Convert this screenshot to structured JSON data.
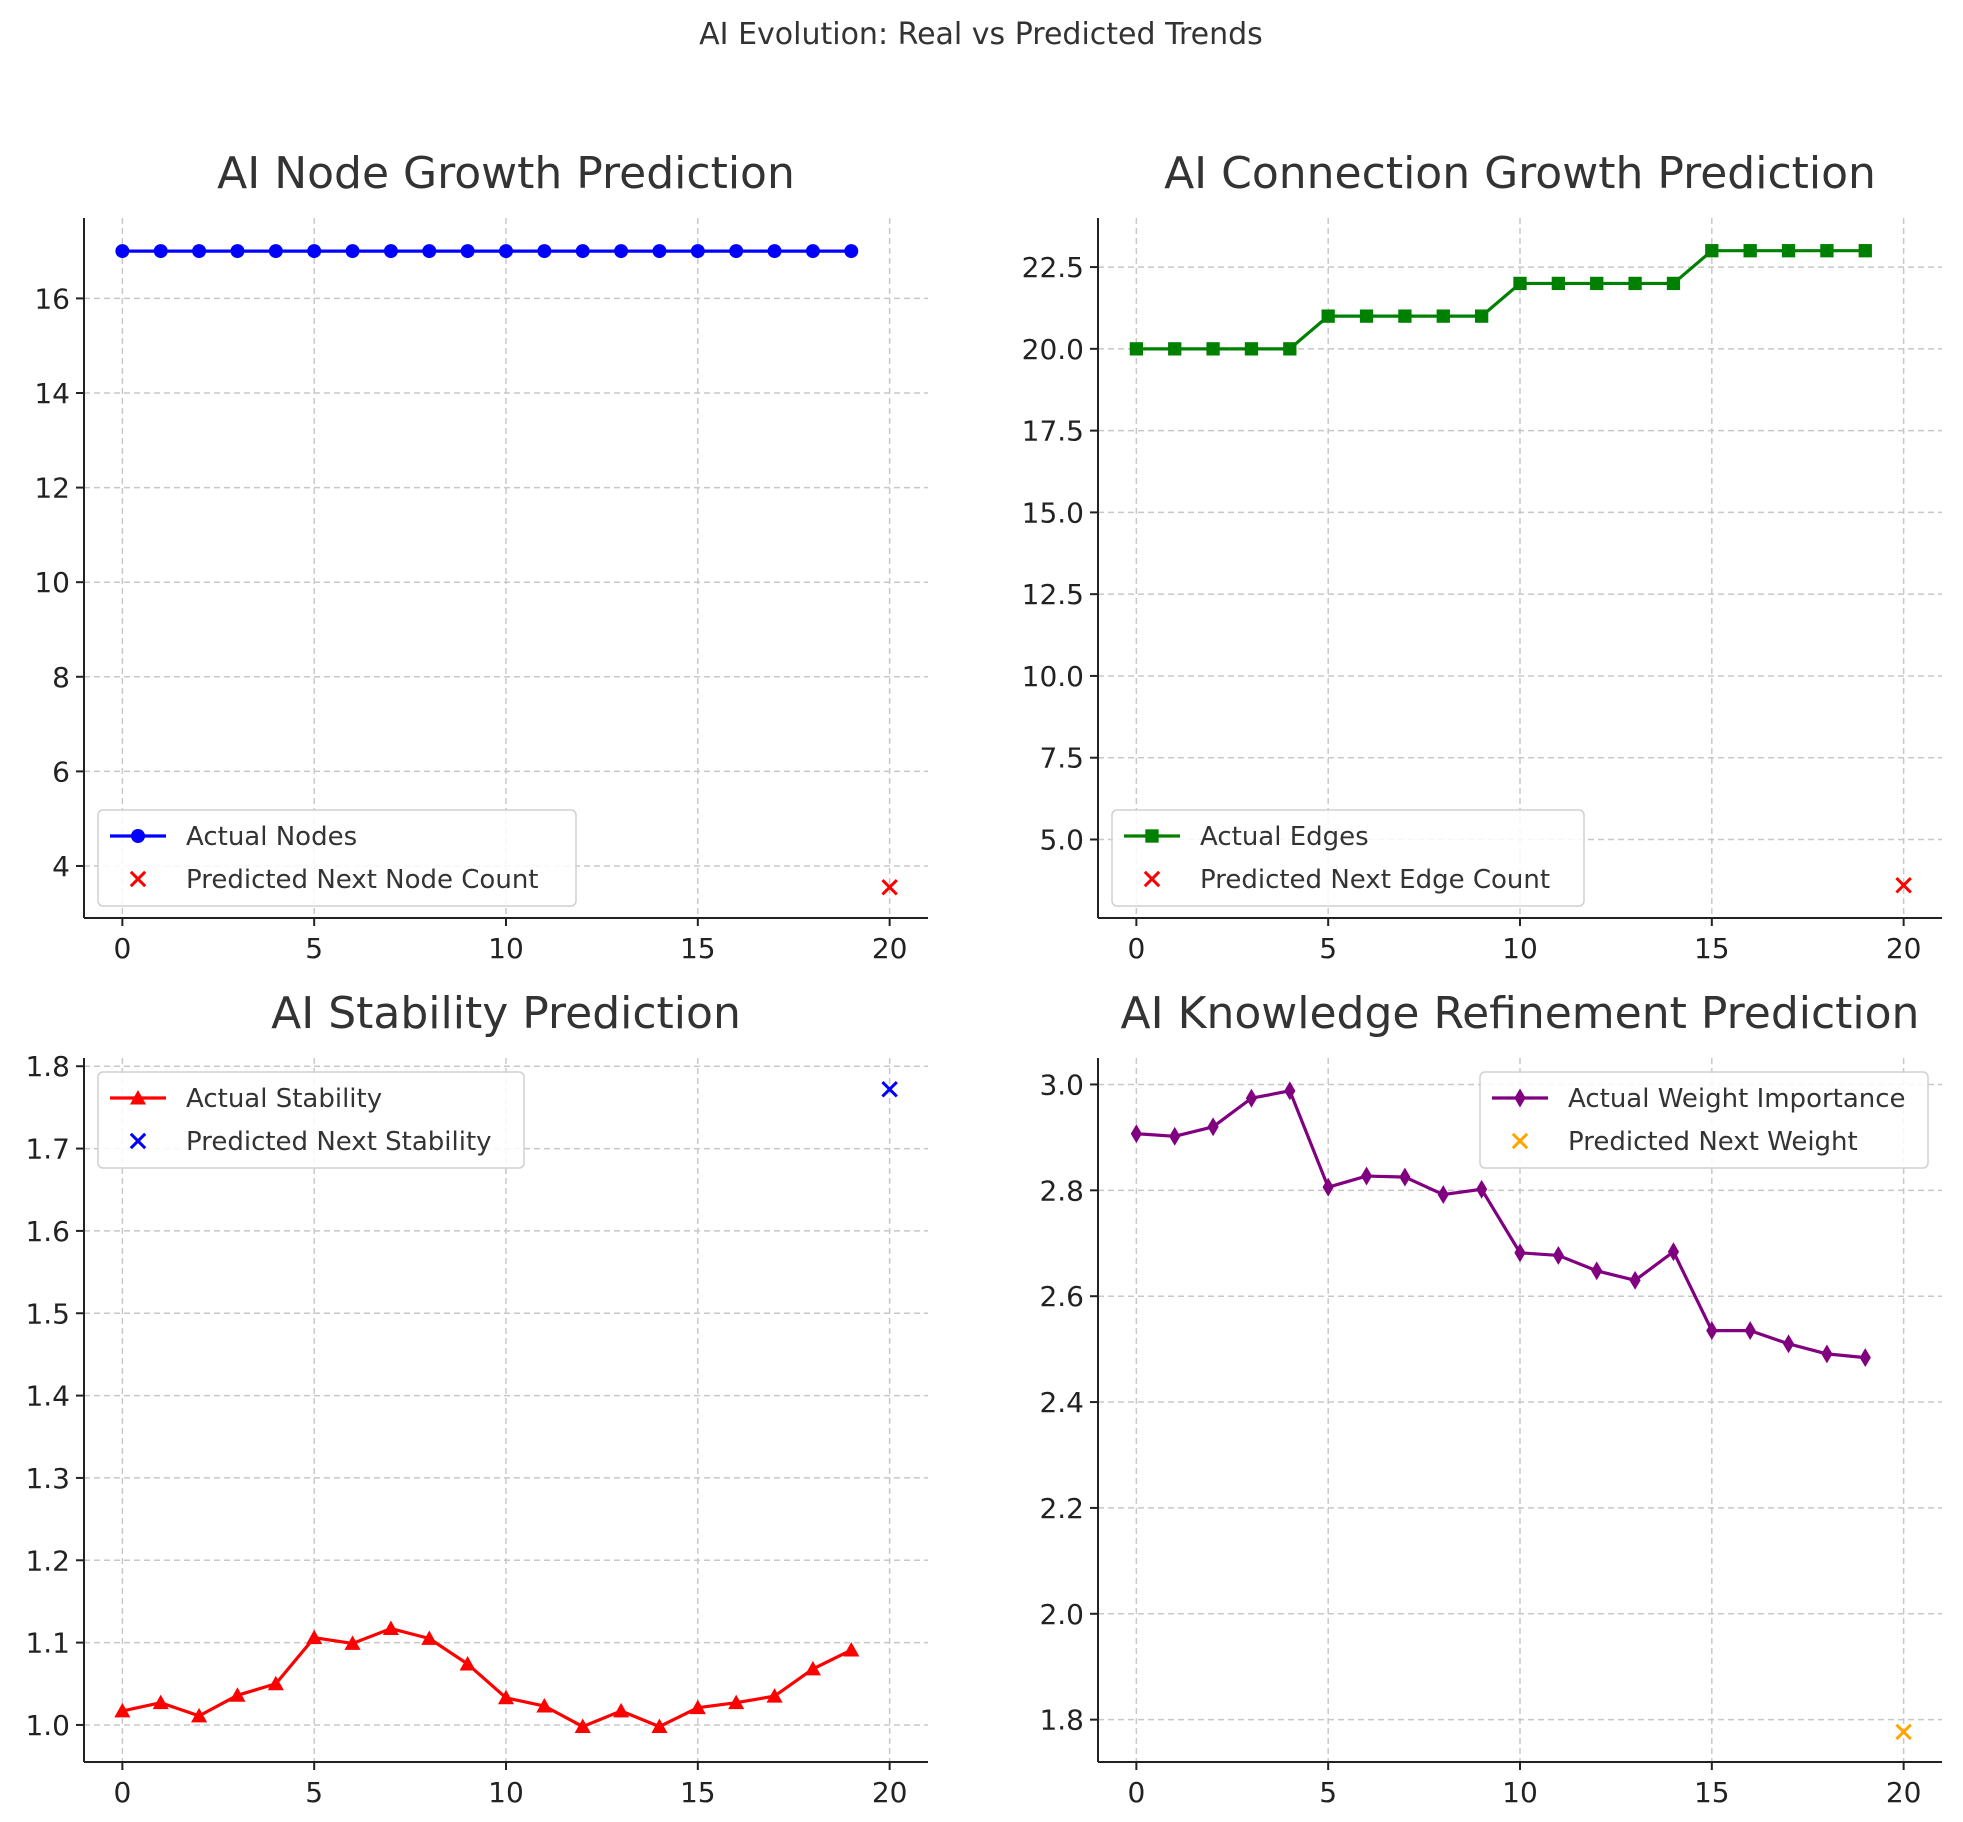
{
  "figure": {
    "title": "AI Evolution: Real vs Predicted Trends"
  },
  "chart_data": [
    {
      "type": "line",
      "title": "AI Node Growth Prediction",
      "xlim": [
        -1,
        21
      ],
      "ylim": [
        2.9,
        17.7
      ],
      "xticks": [
        0,
        5,
        10,
        15,
        20
      ],
      "yticks": [
        4,
        6,
        8,
        10,
        12,
        14,
        16
      ],
      "y_tick_decimals": 0,
      "grid": true,
      "legend_position": "lower-left",
      "series": [
        {
          "name": "Actual Nodes",
          "kind": "line",
          "marker": "circle",
          "color": "#0000ff",
          "x": [
            0,
            1,
            2,
            3,
            4,
            5,
            6,
            7,
            8,
            9,
            10,
            11,
            12,
            13,
            14,
            15,
            16,
            17,
            18,
            19
          ],
          "y": [
            17,
            17,
            17,
            17,
            17,
            17,
            17,
            17,
            17,
            17,
            17,
            17,
            17,
            17,
            17,
            17,
            17,
            17,
            17,
            17
          ]
        },
        {
          "name": "Predicted Next Node Count",
          "kind": "scatter",
          "marker": "x",
          "color": "#ff0000",
          "x": [
            20
          ],
          "y": [
            3.55
          ]
        }
      ]
    },
    {
      "type": "line",
      "title": "AI Connection Growth Prediction",
      "xlim": [
        -1,
        21
      ],
      "ylim": [
        2.6,
        24.0
      ],
      "xticks": [
        0,
        5,
        10,
        15,
        20
      ],
      "yticks": [
        5.0,
        7.5,
        10.0,
        12.5,
        15.0,
        17.5,
        20.0,
        22.5
      ],
      "y_tick_decimals": 1,
      "grid": true,
      "legend_position": "lower-left",
      "series": [
        {
          "name": "Actual Edges",
          "kind": "line",
          "marker": "square",
          "color": "#008000",
          "x": [
            0,
            1,
            2,
            3,
            4,
            5,
            6,
            7,
            8,
            9,
            10,
            11,
            12,
            13,
            14,
            15,
            16,
            17,
            18,
            19
          ],
          "y": [
            20,
            20,
            20,
            20,
            20,
            21,
            21,
            21,
            21,
            21,
            22,
            22,
            22,
            22,
            22,
            23,
            23,
            23,
            23,
            23
          ]
        },
        {
          "name": "Predicted Next Edge Count",
          "kind": "scatter",
          "marker": "x",
          "color": "#ff0000",
          "x": [
            20
          ],
          "y": [
            3.6
          ]
        }
      ]
    },
    {
      "type": "line",
      "title": "AI Stability Prediction",
      "xlim": [
        -1,
        21
      ],
      "ylim": [
        0.955,
        1.81
      ],
      "xticks": [
        0,
        5,
        10,
        15,
        20
      ],
      "yticks": [
        1.0,
        1.1,
        1.2,
        1.3,
        1.4,
        1.5,
        1.6,
        1.7,
        1.8
      ],
      "y_tick_decimals": 1,
      "grid": true,
      "legend_position": "upper-left",
      "series": [
        {
          "name": "Actual Stability",
          "kind": "line",
          "marker": "triangle",
          "color": "#ff0000",
          "x": [
            0,
            1,
            2,
            3,
            4,
            5,
            6,
            7,
            8,
            9,
            10,
            11,
            12,
            13,
            14,
            15,
            16,
            17,
            18,
            19
          ],
          "y": [
            1.017,
            1.027,
            1.011,
            1.036,
            1.05,
            1.106,
            1.099,
            1.117,
            1.105,
            1.074,
            1.033,
            1.023,
            0.998,
            1.017,
            0.998,
            1.021,
            1.027,
            1.035,
            1.068,
            1.091
          ]
        },
        {
          "name": "Predicted Next Stability",
          "kind": "scatter",
          "marker": "x",
          "color": "#0000ff",
          "x": [
            20
          ],
          "y": [
            1.772
          ]
        }
      ]
    },
    {
      "type": "line",
      "title": "AI Knowledge Refinement Prediction",
      "xlim": [
        -1,
        21
      ],
      "ylim": [
        1.72,
        3.05
      ],
      "xticks": [
        0,
        5,
        10,
        15,
        20
      ],
      "yticks": [
        1.8,
        2.0,
        2.2,
        2.4,
        2.6,
        2.8,
        3.0
      ],
      "y_tick_decimals": 1,
      "grid": true,
      "legend_position": "upper-right",
      "series": [
        {
          "name": "Actual Weight Importance",
          "kind": "line",
          "marker": "diamond",
          "color": "#800080",
          "x": [
            0,
            1,
            2,
            3,
            4,
            5,
            6,
            7,
            8,
            9,
            10,
            11,
            12,
            13,
            14,
            15,
            16,
            17,
            18,
            19
          ],
          "y": [
            2.907,
            2.902,
            2.92,
            2.974,
            2.988,
            2.806,
            2.827,
            2.825,
            2.792,
            2.802,
            2.682,
            2.677,
            2.648,
            2.63,
            2.684,
            2.535,
            2.535,
            2.51,
            2.491,
            2.484
          ]
        },
        {
          "name": "Predicted Next Weight",
          "kind": "scatter",
          "marker": "x",
          "color": "#ffa500",
          "x": [
            20
          ],
          "y": [
            1.777
          ]
        }
      ]
    }
  ]
}
